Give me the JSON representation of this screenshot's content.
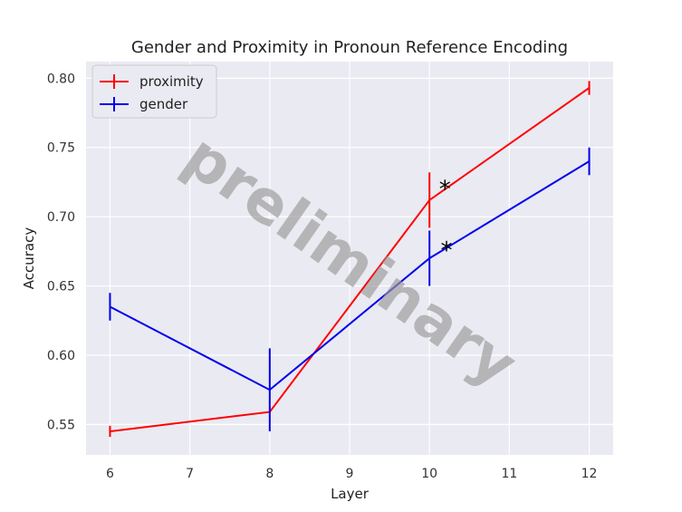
{
  "chart_data": {
    "type": "line",
    "title": "Gender and Proximity in Pronoun Reference Encoding",
    "xlabel": "Layer",
    "ylabel": "Accuracy",
    "xlim": [
      5.7,
      12.3
    ],
    "ylim": [
      0.528,
      0.812
    ],
    "xticks": [
      6,
      7,
      8,
      9,
      10,
      11,
      12
    ],
    "yticks": [
      0.55,
      0.6,
      0.65,
      0.7,
      0.75,
      0.8
    ],
    "ytick_labels": [
      "0.55",
      "0.60",
      "0.65",
      "0.70",
      "0.75",
      "0.80"
    ],
    "grid": true,
    "legend_position": "top-left",
    "watermark": "preliminary",
    "series": [
      {
        "name": "proximity",
        "color": "#ff0000",
        "x": [
          6,
          8,
          10,
          12
        ],
        "y": [
          0.545,
          0.559,
          0.712,
          0.793
        ],
        "err": [
          0.004,
          0.0,
          0.02,
          0.005
        ]
      },
      {
        "name": "gender",
        "color": "#0000ee",
        "x": [
          6,
          8,
          10,
          12
        ],
        "y": [
          0.635,
          0.575,
          0.67,
          0.74
        ],
        "err": [
          0.01,
          0.03,
          0.02,
          0.01
        ]
      }
    ],
    "annotations": [
      {
        "text": "*",
        "x": 10.12,
        "y": 0.722
      },
      {
        "text": "*",
        "x": 10.14,
        "y": 0.678
      }
    ]
  }
}
